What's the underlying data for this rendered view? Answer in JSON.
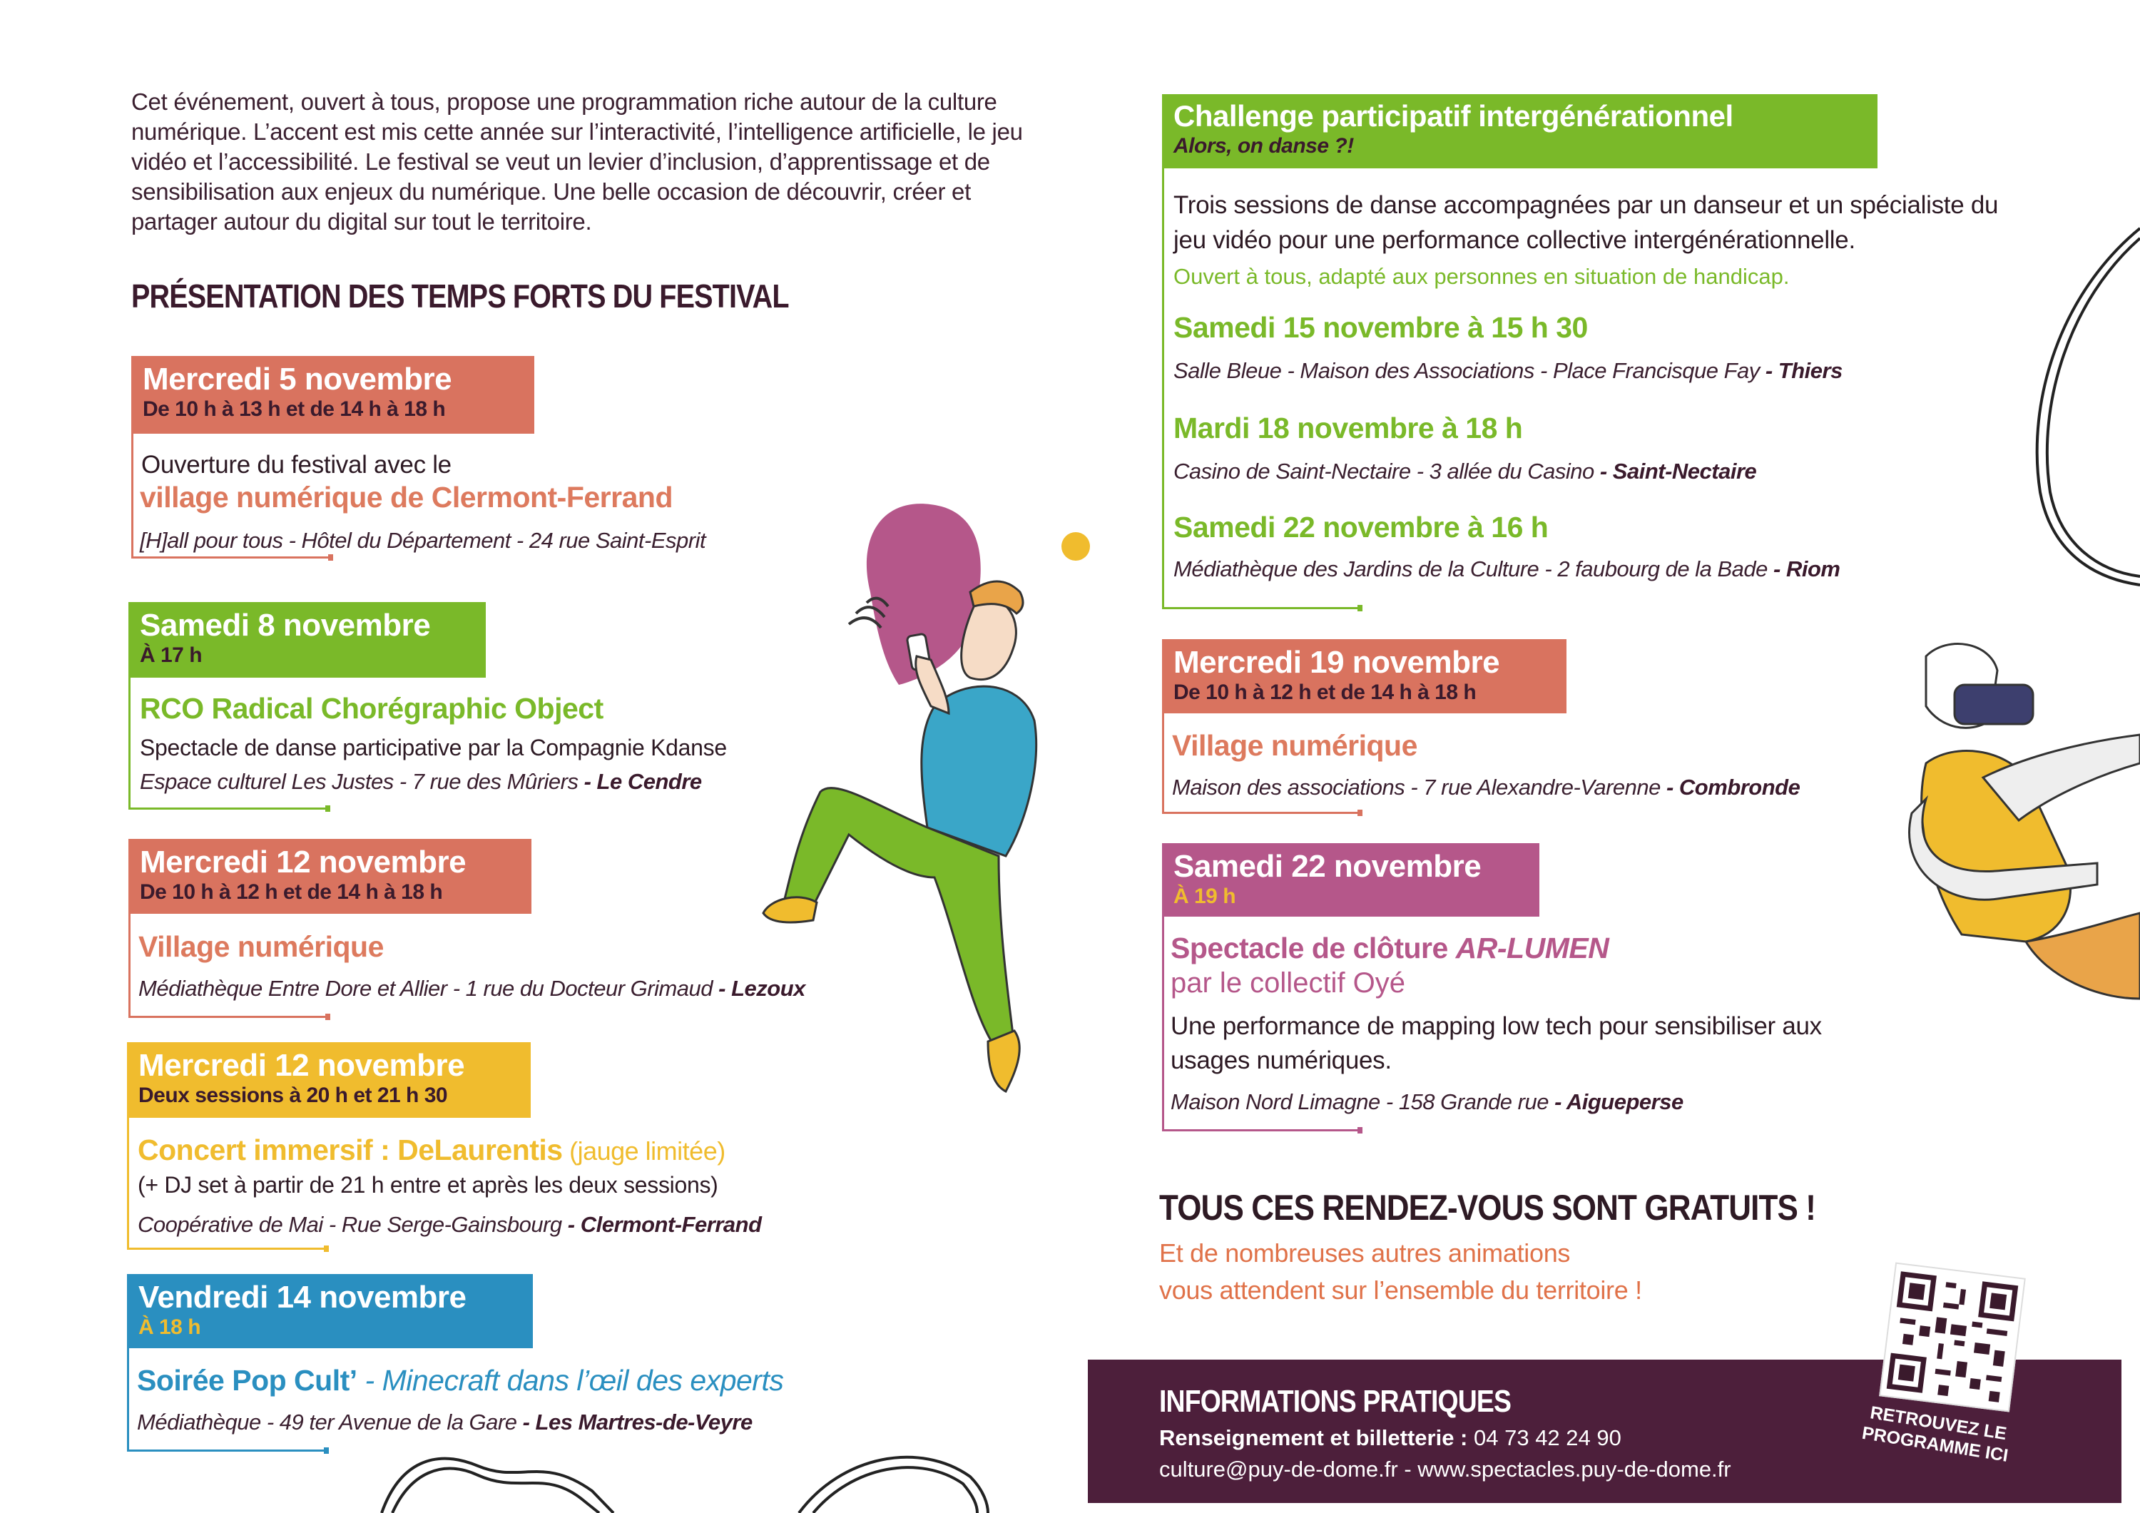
{
  "intro": "Cet événement, ouvert à tous, propose une programmation riche autour de la culture numérique. L’accent est mis cette année sur l’interactivité, l’intelligence artificielle, le jeu vidéo et l’accessibilité. Le festival se veut un levier d’inclusion, d’apprentissage et de sensibilisation aux enjeux du numérique. Une belle occasion de découvrir, créer et partager autour du digital sur tout le territoire.",
  "section_title": "PRÉSENTATION DES TEMPS FORTS DU FESTIVAL",
  "colors": {
    "salmon": "#d9735f",
    "green": "#7ab929",
    "yellow": "#f0bc2e",
    "blue": "#2a8fc0",
    "mauve": "#b5578a",
    "dark": "#3a1a2c",
    "info_bg": "#4d1f3b",
    "orange_text": "#e07249"
  },
  "events_left": [
    {
      "date": "Mercredi 5 novembre",
      "time": "De 10 h à 13 h et de 14 h à 18 h",
      "intro": "Ouverture du festival avec le",
      "title": "village numérique de Clermont-Ferrand",
      "place": "[H]all pour tous - Hôtel du Département - 24 rue Saint-Esprit"
    },
    {
      "date": "Samedi 8 novembre",
      "time": "À 17 h",
      "title": "RCO Radical Chorégraphic Object",
      "desc": "Spectacle de danse participative par la Compagnie Kdanse",
      "place": "Espace culturel Les Justes - 7 rue des Mûriers",
      "city": " - Le Cendre"
    },
    {
      "date": "Mercredi 12 novembre",
      "time": "De 10 h à 12 h et de 14 h à 18 h",
      "title": "Village numérique",
      "place": "Médiathèque Entre Dore et Allier - 1 rue du Docteur Grimaud",
      "city": " - Lezoux"
    },
    {
      "date": "Mercredi 12 novembre",
      "time": "Deux sessions à 20 h et 21 h 30",
      "title": "Concert immersif : DeLaurentis",
      "title_note": " (jauge limitée)",
      "desc": "(+ DJ set à partir de 21 h entre et après les deux sessions)",
      "place": "Coopérative de Mai - Rue Serge-Gainsbourg",
      "city": " - Clermont-Ferrand"
    },
    {
      "date": "Vendredi 14 novembre",
      "time": "À 18 h",
      "title": "Soirée Pop Cult’",
      "title_italic": " - Minecraft dans l’œil des experts",
      "place": "Médiathèque - 49 ter Avenue de la Gare",
      "city": " - Les Martres-de-Veyre"
    }
  ],
  "challenge": {
    "title": "Challenge participatif intergénérationnel",
    "subtitle": "Alors, on danse ?!",
    "desc_line1": "Trois sessions de danse accompagnées par un danseur et un spécialiste du",
    "desc_line2": "jeu vidéo pour une performance collective intergénérationnelle.",
    "accessibility": "Ouvert à tous, adapté aux personnes en situation de handicap.",
    "sessions": [
      {
        "date": "Samedi 15 novembre à 15 h 30",
        "place": "Salle Bleue - Maison des Associations - Place Francisque Fay",
        "city": " - Thiers"
      },
      {
        "date": "Mardi 18 novembre à 18 h",
        "place": "Casino de Saint-Nectaire - 3 allée du Casino",
        "city": " - Saint-Nectaire"
      },
      {
        "date": "Samedi 22 novembre à 16 h",
        "place": "Médiathèque des Jardins de la Culture - 2 faubourg de la Bade",
        "city": " - Riom"
      }
    ]
  },
  "events_right": [
    {
      "date": "Mercredi 19 novembre",
      "time": "De 10 h à 12 h et de 14 h à 18 h",
      "title": "Village numérique",
      "place": "Maison des associations - 7 rue Alexandre-Varenne",
      "city": " - Combronde"
    },
    {
      "date": "Samedi 22 novembre",
      "time": "À 19 h",
      "title": "Spectacle de clôture ",
      "title_italic": "AR-LUMEN",
      "title_line2": "par le collectif Oyé",
      "desc_line1": "Une performance de mapping low tech pour sensibiliser aux",
      "desc_line2": "usages numériques.",
      "place": "Maison Nord Limagne - 158 Grande rue",
      "city": " - Aigueperse"
    }
  ],
  "free": {
    "title": "TOUS CES RENDEZ-VOUS SONT GRATUITS !",
    "line1": "Et de nombreuses autres animations",
    "line2": "vous attendent sur l’ensemble du territoire !"
  },
  "info": {
    "title": "INFORMATIONS PRATIQUES",
    "phone_label": "Renseignement et billetterie : ",
    "phone": "04 73 42 24 90",
    "contact": "culture@puy-de-dome.fr - www.spectacles.puy-de-dome.fr",
    "qr_label_1": "RETROUVEZ LE",
    "qr_label_2": "PROGRAMME ICI",
    "qr_icon": "qr-code-icon"
  }
}
